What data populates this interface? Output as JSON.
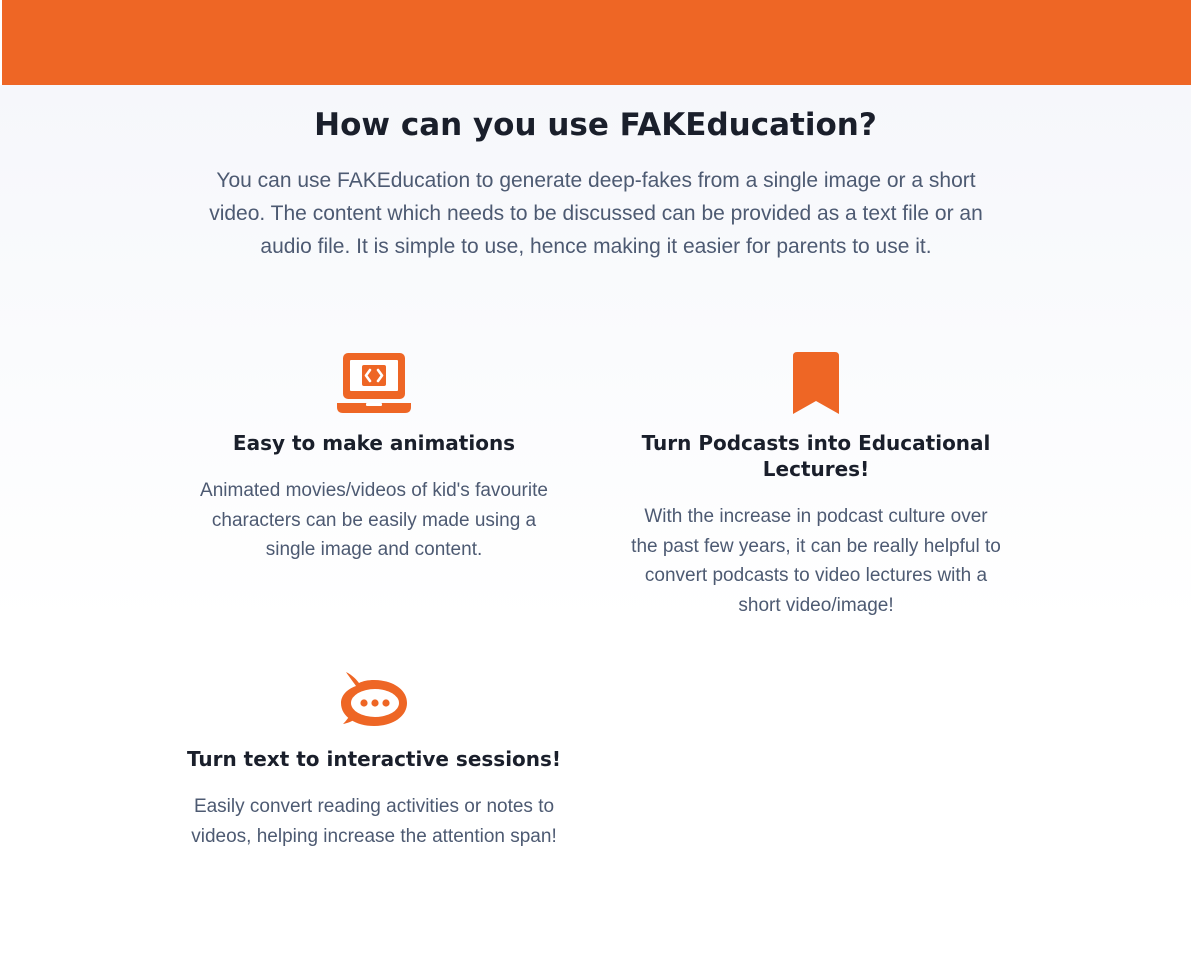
{
  "colors": {
    "accent": "#ee6625",
    "heading": "#1a1f2b",
    "body_text": "#4d5a72",
    "section_background": "#f6f7fb"
  },
  "section": {
    "title": "How can you use FAKEducation?",
    "intro": "You can use FAKEducation to generate deep-fakes from a single image or a short video. The content which needs to be discussed can be provided as a text file or an audio file. It is simple to use, hence making it easier for parents to use it."
  },
  "features": [
    {
      "icon": "laptop-code-icon",
      "title": "Easy to make animations",
      "description": "Animated movies/videos of kid's favourite characters can be easily made using a single image and content."
    },
    {
      "icon": "bookmark-icon",
      "title": "Turn Podcasts into Educational Lectures!",
      "description": "With the increase in podcast culture over the past few years, it can be really helpful to convert podcasts to video lectures with a short video/image!"
    },
    {
      "icon": "chat-bubble-icon",
      "title": "Turn text to interactive sessions!",
      "description": "Easily convert reading activities or notes to videos, helping increase the attention span!"
    }
  ]
}
